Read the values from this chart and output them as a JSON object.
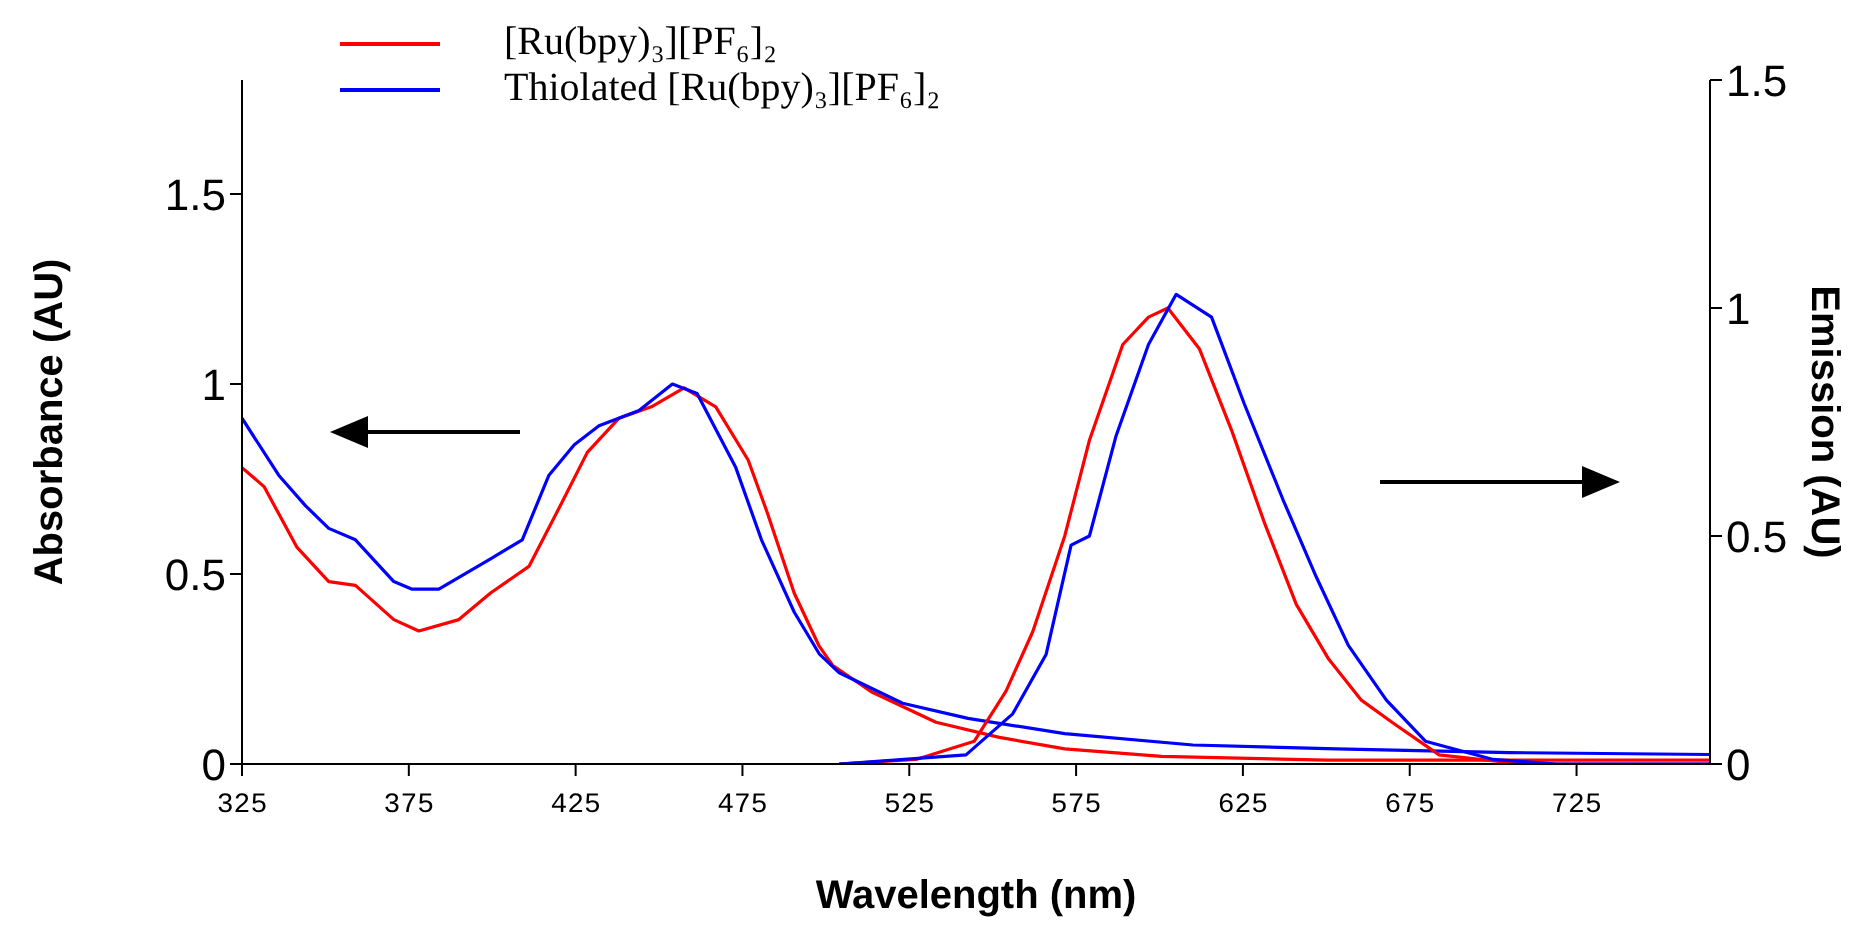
{
  "chart_data": {
    "type": "line",
    "xlabel": "Wavelength (nm)",
    "ylabel": "Absorbance (AU)",
    "y2label": "Emission (AU)",
    "xlim": [
      325,
      765
    ],
    "xticks": [
      325,
      375,
      425,
      475,
      525,
      575,
      625,
      675,
      725
    ],
    "ylim": [
      0,
      1.8
    ],
    "yticks": [
      0,
      0.5,
      1,
      1.5
    ],
    "y2lim": [
      0,
      1.5
    ],
    "y2ticks": [
      0,
      0.5,
      1,
      1.5
    ],
    "legend": "top",
    "series": [
      {
        "name": "[Ru(bpy)₃][PF₆]₂",
        "color": "#ff0000",
        "x": [
          325,
          331.6,
          341.5,
          351,
          359,
          370.5,
          378,
          390,
          399.5,
          411,
          421,
          428.5,
          438,
          447.7,
          457.5,
          467,
          476.7,
          482.5,
          490.5,
          498,
          502,
          513.6,
          533,
          552,
          571.6,
          600.6,
          650,
          700,
          765
        ],
        "values": [
          0.78,
          0.73,
          0.57,
          0.48,
          0.47,
          0.38,
          0.35,
          0.38,
          0.45,
          0.52,
          0.69,
          0.82,
          0.91,
          0.94,
          0.99,
          0.94,
          0.8,
          0.66,
          0.45,
          0.31,
          0.26,
          0.19,
          0.11,
          0.07,
          0.04,
          0.02,
          0.01,
          0.01,
          0.01
        ]
      },
      {
        "name": "Thiolated [Ru(bpy)₃][PF₆]₂",
        "color": "#0000ff",
        "x": [
          325,
          336,
          344,
          351,
          359,
          370.5,
          376,
          384,
          399.5,
          409,
          417,
          424.6,
          432,
          444,
          454,
          461.4,
          473,
          480.7,
          490.5,
          498,
          504,
          523,
          542.6,
          571.6,
          610,
          653,
          705,
          765
        ],
        "values": [
          0.91,
          0.76,
          0.68,
          0.62,
          0.59,
          0.48,
          0.46,
          0.46,
          0.54,
          0.59,
          0.76,
          0.84,
          0.89,
          0.93,
          1.0,
          0.975,
          0.78,
          0.59,
          0.4,
          0.29,
          0.24,
          0.16,
          0.12,
          0.08,
          0.05,
          0.04,
          0.03,
          0.025
        ]
      },
      {
        "color": "#ff0000",
        "axis": "y2",
        "x": [
          504,
          527,
          544.5,
          554,
          562,
          571.6,
          579,
          589,
          596.7,
          602.5,
          612,
          621.7,
          631.4,
          641,
          650.7,
          660.5,
          670,
          683.8,
          708.7,
          765
        ],
        "values": [
          0,
          0.01,
          0.05,
          0.16,
          0.29,
          0.5,
          0.71,
          0.92,
          0.98,
          1.0,
          0.91,
          0.73,
          0.53,
          0.35,
          0.23,
          0.14,
          0.09,
          0.02,
          0,
          0
        ]
      },
      {
        "color": "#0000ff",
        "axis": "y2",
        "x": [
          504,
          542,
          556,
          566,
          573.5,
          579,
          587,
          596.7,
          605,
          615.6,
          625.4,
          637,
          647,
          656.6,
          668,
          679.7,
          700,
          719,
          765
        ],
        "values": [
          0,
          0.02,
          0.11,
          0.24,
          0.48,
          0.5,
          0.72,
          0.92,
          1.03,
          0.98,
          0.79,
          0.58,
          0.41,
          0.26,
          0.14,
          0.05,
          0.01,
          0,
          0
        ]
      }
    ]
  }
}
